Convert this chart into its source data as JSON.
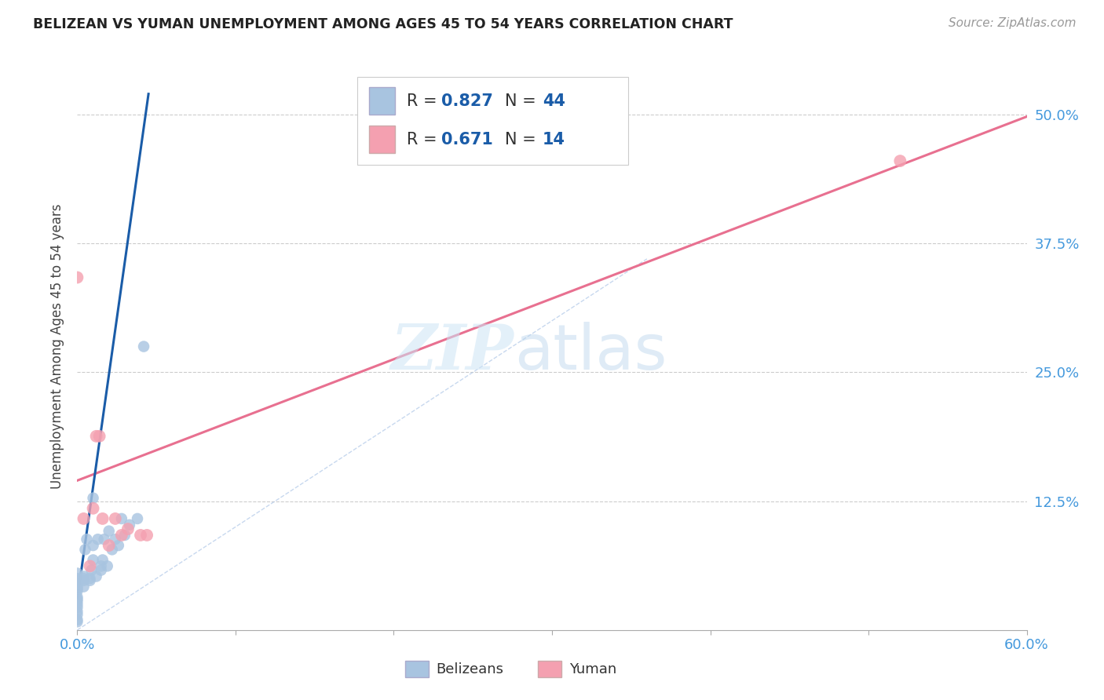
{
  "title": "BELIZEAN VS YUMAN UNEMPLOYMENT AMONG AGES 45 TO 54 YEARS CORRELATION CHART",
  "source": "Source: ZipAtlas.com",
  "ylabel": "Unemployment Among Ages 45 to 54 years",
  "xlim": [
    0.0,
    0.6
  ],
  "ylim": [
    0.0,
    0.55
  ],
  "xticks": [
    0.0,
    0.1,
    0.2,
    0.3,
    0.4,
    0.5,
    0.6
  ],
  "xticklabels": [
    "0.0%",
    "",
    "",
    "",
    "",
    "",
    "60.0%"
  ],
  "yticks": [
    0.0,
    0.125,
    0.25,
    0.375,
    0.5
  ],
  "yticklabels": [
    "",
    "12.5%",
    "25.0%",
    "37.5%",
    "50.0%"
  ],
  "grid_color": "#cccccc",
  "background_color": "#ffffff",
  "belizean_color": "#a8c4e0",
  "yuman_color": "#f4a0b0",
  "belizean_line_color": "#1a5ca8",
  "yuman_line_color": "#e87090",
  "diagonal_color": "#b0c8e8",
  "R_belizean": 0.827,
  "N_belizean": 44,
  "R_yuman": 0.671,
  "N_yuman": 14,
  "tick_color": "#4499dd",
  "belizean_x": [
    0.0,
    0.0,
    0.0,
    0.0,
    0.0,
    0.0,
    0.0,
    0.0,
    0.0,
    0.0,
    0.0,
    0.0,
    0.0,
    0.0,
    0.0,
    0.0,
    0.004,
    0.004,
    0.004,
    0.004,
    0.005,
    0.006,
    0.008,
    0.008,
    0.009,
    0.01,
    0.01,
    0.01,
    0.012,
    0.013,
    0.015,
    0.015,
    0.016,
    0.017,
    0.019,
    0.02,
    0.022,
    0.024,
    0.026,
    0.028,
    0.03,
    0.033,
    0.038,
    0.042
  ],
  "belizean_y": [
    0.008,
    0.01,
    0.015,
    0.018,
    0.022,
    0.025,
    0.028,
    0.03,
    0.032,
    0.038,
    0.04,
    0.042,
    0.045,
    0.048,
    0.05,
    0.055,
    0.042,
    0.048,
    0.05,
    0.052,
    0.078,
    0.088,
    0.048,
    0.05,
    0.058,
    0.068,
    0.082,
    0.128,
    0.052,
    0.088,
    0.058,
    0.062,
    0.068,
    0.088,
    0.062,
    0.096,
    0.078,
    0.088,
    0.082,
    0.108,
    0.092,
    0.102,
    0.108,
    0.275
  ],
  "yuman_x": [
    0.0,
    0.004,
    0.008,
    0.01,
    0.012,
    0.014,
    0.016,
    0.02,
    0.024,
    0.028,
    0.032,
    0.04,
    0.044,
    0.52
  ],
  "yuman_y": [
    0.342,
    0.108,
    0.062,
    0.118,
    0.188,
    0.188,
    0.108,
    0.082,
    0.108,
    0.092,
    0.098,
    0.092,
    0.092,
    0.455
  ],
  "belizean_line_x": [
    0.0,
    0.045
  ],
  "belizean_line_y": [
    0.03,
    0.52
  ],
  "yuman_line_x": [
    0.0,
    0.6
  ],
  "yuman_line_y": [
    0.145,
    0.498
  ],
  "diagonal_line_x": [
    0.0,
    0.36
  ],
  "diagonal_line_y": [
    0.0,
    0.36
  ]
}
